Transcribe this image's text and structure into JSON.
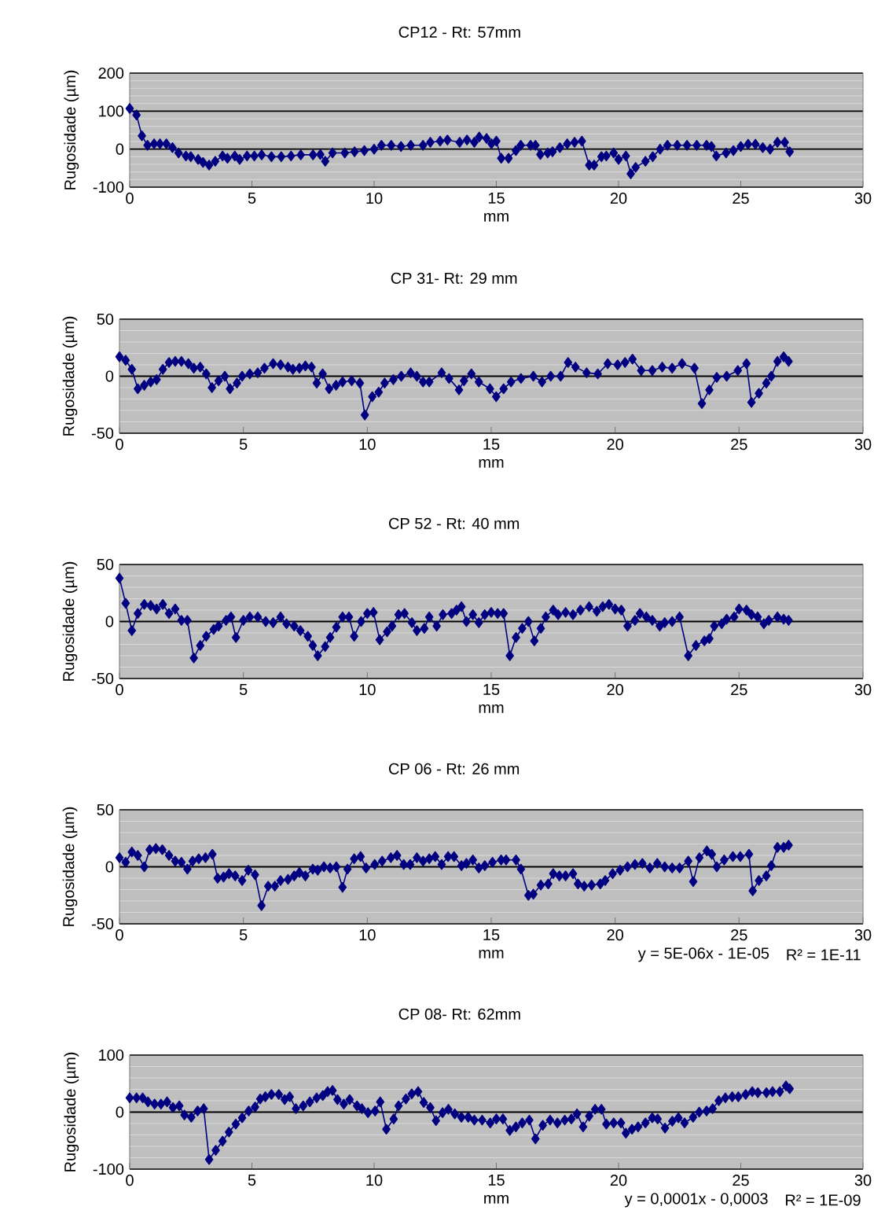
{
  "chart_data": [
    {
      "type": "line",
      "title": "CP12  - Rt: 57mm",
      "xlabel": "mm",
      "ylabel": "Rugosidade (µm)",
      "xlim": [
        0,
        30
      ],
      "xticks": [
        0,
        5,
        10,
        15,
        20,
        25,
        30
      ],
      "ylim": [
        -100,
        200
      ],
      "yticks": [
        -100,
        0,
        100,
        200
      ],
      "grid": "y",
      "marker": "diamond",
      "line_style": "solid",
      "series": [
        {
          "color": "#000080",
          "x": [
            0,
            0.28,
            0.5,
            0.73,
            1,
            1.24,
            1.5,
            1.75,
            2,
            2.3,
            2.5,
            2.8,
            3,
            3.25,
            3.5,
            3.8,
            4,
            4.3,
            4.5,
            4.8,
            5.1,
            5.4,
            5.8,
            6.2,
            6.6,
            7,
            7.5,
            7.8,
            8,
            8.3,
            8.8,
            9.2,
            9.6,
            10,
            10.3,
            10.7,
            11.1,
            11.5,
            12,
            12.3,
            12.7,
            13,
            13.5,
            13.8,
            14.1,
            14.3,
            14.6,
            14.8,
            15,
            15.2,
            15.5,
            15.8,
            16,
            16.4,
            16.6,
            16.8,
            17.1,
            17.3,
            17.6,
            17.9,
            18.2,
            18.5,
            18.8,
            19,
            19.3,
            19.5,
            19.8,
            20,
            20.3,
            20.5,
            20.7,
            21.1,
            21.4,
            21.7,
            22,
            22.4,
            22.8,
            23.2,
            23.6,
            23.8,
            24,
            24.4,
            24.7,
            25,
            25.3,
            25.6,
            25.9,
            26.2,
            26.5,
            26.8,
            27
          ],
          "values": [
            107,
            90,
            35,
            10,
            14,
            14,
            14,
            4,
            -10,
            -18,
            -20,
            -27,
            -35,
            -42,
            -32,
            -18,
            -24,
            -18,
            -27,
            -18,
            -18,
            -15,
            -20,
            -20,
            -18,
            -15,
            -15,
            -14,
            -32,
            -10,
            -10,
            -7,
            -4,
            0,
            10,
            10,
            7,
            10,
            10,
            18,
            21,
            24,
            18,
            24,
            18,
            32,
            28,
            14,
            21,
            -24,
            -24,
            -4,
            10,
            10,
            10,
            -14,
            -10,
            -7,
            4,
            14,
            18,
            21,
            -42,
            -42,
            -20,
            -18,
            -10,
            -27,
            -18,
            -65,
            -48,
            -32,
            -20,
            0,
            10,
            10,
            10,
            10,
            10,
            7,
            -18,
            -10,
            -4,
            7,
            13,
            13,
            4,
            0,
            18,
            18,
            -7
          ]
        }
      ]
    },
    {
      "type": "line",
      "title": "CP 31- Rt: 29 mm",
      "xlabel": "mm",
      "ylabel": "Rugosidade (µm)",
      "xlim": [
        0,
        30
      ],
      "xticks": [
        0,
        5,
        10,
        15,
        20,
        25,
        30
      ],
      "ylim": [
        -50,
        50
      ],
      "yticks": [
        -50,
        0,
        50
      ],
      "grid": "y",
      "marker": "diamond",
      "line_style": "solid",
      "series": [
        {
          "color": "#000080",
          "x": [
            0,
            0.25,
            0.5,
            0.74,
            1,
            1.26,
            1.5,
            1.75,
            2,
            2.25,
            2.5,
            2.78,
            3,
            3.26,
            3.5,
            3.73,
            4,
            4.25,
            4.46,
            4.74,
            4.95,
            5.26,
            5.58,
            5.85,
            6.2,
            6.5,
            6.8,
            7,
            7.26,
            7.5,
            7.75,
            7.96,
            8.2,
            8.46,
            8.74,
            9,
            9.37,
            9.7,
            9.9,
            10.2,
            10.46,
            10.7,
            11.05,
            11.37,
            11.75,
            12,
            12.25,
            12.5,
            13,
            13.3,
            13.7,
            13.9,
            14.2,
            14.5,
            14.95,
            15.2,
            15.5,
            15.8,
            16.2,
            16.7,
            17.05,
            17.4,
            17.8,
            18.1,
            18.4,
            18.85,
            19.3,
            19.7,
            20.1,
            20.4,
            20.7,
            21.05,
            21.5,
            21.9,
            22.3,
            22.7,
            23.2,
            23.5,
            23.8,
            24.1,
            24.5,
            24.95,
            25.3,
            25.5,
            25.8,
            26.1,
            26.3,
            26.55,
            26.8,
            27
          ],
          "values": [
            17,
            14,
            6,
            -11,
            -8,
            -5,
            -3,
            6,
            12,
            13,
            13,
            11,
            7,
            8,
            2,
            -10,
            -4,
            0,
            -11,
            -6,
            0,
            2,
            3,
            7,
            11,
            10,
            8,
            6,
            7,
            9,
            8,
            -6,
            2,
            -11,
            -8,
            -5,
            -4,
            -6,
            -34,
            -18,
            -14,
            -6,
            -3,
            0,
            3,
            0,
            -5,
            -5,
            3,
            -2,
            -12,
            -4,
            2,
            -5,
            -11,
            -18,
            -11,
            -5,
            -2,
            0,
            -5,
            0,
            0,
            12,
            8,
            3,
            2,
            11,
            10,
            12,
            15,
            5,
            5,
            8,
            7,
            11,
            7,
            -24,
            -12,
            -1,
            0,
            5,
            11,
            -23,
            -15,
            -6,
            0,
            13,
            17,
            13
          ]
        }
      ]
    },
    {
      "type": "line",
      "title": "CP 52 - Rt: 40 mm",
      "xlabel": "mm",
      "ylabel": "Rugosidade (µm)",
      "xlim": [
        0,
        30
      ],
      "xticks": [
        0,
        5,
        10,
        15,
        20,
        25,
        30
      ],
      "ylim": [
        -50,
        50
      ],
      "yticks": [
        -50,
        0,
        50
      ],
      "grid": "y",
      "marker": "diamond",
      "line_style": "solid",
      "series": [
        {
          "color": "#000080",
          "x": [
            0,
            0.25,
            0.5,
            0.74,
            1,
            1.26,
            1.5,
            1.75,
            2,
            2.25,
            2.5,
            2.74,
            3,
            3.26,
            3.5,
            3.8,
            4,
            4.3,
            4.5,
            4.7,
            5,
            5.26,
            5.58,
            5.9,
            6.2,
            6.5,
            6.74,
            7.05,
            7.3,
            7.6,
            7.8,
            8,
            8.3,
            8.5,
            8.75,
            9,
            9.26,
            9.47,
            9.75,
            10,
            10.25,
            10.5,
            10.8,
            11,
            11.26,
            11.5,
            11.8,
            12,
            12.3,
            12.5,
            12.8,
            13.05,
            13.4,
            13.6,
            13.8,
            14,
            14.26,
            14.5,
            14.74,
            15,
            15.26,
            15.5,
            15.75,
            16,
            16.25,
            16.5,
            16.74,
            17,
            17.2,
            17.5,
            17.7,
            18,
            18.3,
            18.6,
            18.95,
            19.26,
            19.5,
            19.75,
            20,
            20.25,
            20.5,
            20.8,
            21,
            21.26,
            21.5,
            21.8,
            22,
            22.3,
            22.6,
            22.95,
            23.26,
            23.6,
            23.8,
            24,
            24.3,
            24.5,
            24.8,
            25,
            25.3,
            25.5,
            25.75,
            26,
            26.2,
            26.55,
            26.8,
            27
          ],
          "values": [
            38,
            16,
            -8,
            7,
            15,
            14,
            11,
            15,
            7,
            11,
            1,
            1,
            -32,
            -21,
            -13,
            -7,
            -4,
            1,
            4,
            -14,
            1,
            4,
            4,
            0,
            -1,
            4,
            -2,
            -4,
            -8,
            -13,
            -21,
            -30,
            -22,
            -14,
            -5,
            4,
            4,
            -13,
            0,
            7,
            8,
            -16,
            -9,
            -4,
            6,
            7,
            -1,
            -8,
            -6,
            4,
            -4,
            6,
            7,
            10,
            13,
            0,
            6,
            -1,
            6,
            8,
            7,
            7,
            -30,
            -14,
            -6,
            0,
            -17,
            -6,
            4,
            10,
            6,
            8,
            6,
            10,
            13,
            9,
            13,
            15,
            11,
            10,
            -4,
            1,
            7,
            4,
            1,
            -4,
            -1,
            0,
            4,
            -30,
            -21,
            -17,
            -15,
            -4,
            -2,
            2,
            4,
            11,
            10,
            6,
            4,
            -2,
            1,
            4,
            2,
            1
          ]
        }
      ]
    },
    {
      "type": "line",
      "title": "CP 06 - Rt: 26 mm",
      "xlabel": "mm",
      "ylabel": "Rugosidade (µm)",
      "xlim": [
        0,
        30
      ],
      "xticks": [
        0,
        5,
        10,
        15,
        20,
        25,
        30
      ],
      "ylim": [
        -50,
        50
      ],
      "yticks": [
        -50,
        0,
        50
      ],
      "grid": "y",
      "marker": "diamond",
      "line_style": "solid",
      "annotations": [
        "y = 5E-06x - 1E-05",
        "R² = 1E-11"
      ],
      "series": [
        {
          "color": "#000080",
          "x": [
            0,
            0.25,
            0.5,
            0.74,
            1,
            1.22,
            1.47,
            1.73,
            2,
            2.25,
            2.5,
            2.74,
            2.95,
            3.2,
            3.47,
            3.75,
            3.96,
            4.2,
            4.42,
            4.67,
            4.95,
            5.2,
            5.47,
            5.73,
            6,
            6.27,
            6.5,
            6.8,
            7.05,
            7.26,
            7.5,
            7.8,
            8,
            8.25,
            8.5,
            8.75,
            9,
            9.2,
            9.47,
            9.73,
            9.95,
            10.3,
            10.6,
            10.95,
            11.2,
            11.47,
            11.73,
            12,
            12.25,
            12.5,
            12.74,
            13,
            13.26,
            13.5,
            13.8,
            14,
            14.26,
            14.5,
            14.74,
            15.05,
            15.4,
            15.6,
            16,
            16.2,
            16.5,
            16.7,
            17,
            17.3,
            17.5,
            17.75,
            18,
            18.3,
            18.5,
            18.75,
            19.05,
            19.4,
            19.6,
            19.9,
            20.2,
            20.5,
            20.8,
            21.1,
            21.4,
            21.7,
            22,
            22.3,
            22.6,
            22.95,
            23.15,
            23.4,
            23.7,
            23.9,
            24.1,
            24.4,
            24.75,
            25.05,
            25.4,
            25.55,
            25.8,
            26.1,
            26.3,
            26.55,
            26.8,
            27
          ],
          "values": [
            8,
            4,
            13,
            10,
            0,
            15,
            16,
            15,
            10,
            5,
            4,
            -2,
            5,
            7,
            8,
            11,
            -10,
            -9,
            -6,
            -8,
            -12,
            -3,
            -7,
            -34,
            -17,
            -17,
            -12,
            -11,
            -8,
            -5,
            -8,
            -2,
            -3,
            0,
            -1,
            0,
            -18,
            -2,
            7,
            9,
            -1,
            2,
            5,
            8,
            10,
            2,
            2,
            8,
            5,
            7,
            9,
            2,
            9,
            9,
            1,
            3,
            6,
            -1,
            1,
            4,
            6,
            6,
            6,
            -2,
            -25,
            -24,
            -16,
            -15,
            -6,
            -8,
            -8,
            -6,
            -15,
            -17,
            -16,
            -15,
            -12,
            -6,
            -3,
            0,
            2,
            3,
            -1,
            3,
            0,
            -1,
            -1,
            5,
            -13,
            8,
            14,
            11,
            0,
            6,
            9,
            9,
            11,
            -21,
            -12,
            -8,
            1,
            17,
            17,
            19
          ]
        }
      ]
    },
    {
      "type": "line",
      "title": "CP 08- Rt: 62mm",
      "xlabel": "mm",
      "ylabel": "Rugosidade (µm)",
      "xlim": [
        0,
        30
      ],
      "xticks": [
        0,
        5,
        10,
        15,
        20,
        25,
        30
      ],
      "ylim": [
        -100,
        100
      ],
      "yticks": [
        -100,
        0,
        100
      ],
      "grid": "y",
      "marker": "diamond",
      "line_style": "solid",
      "annotations": [
        "y = 0,0001x - 0,0003",
        "R² = 1E-09"
      ],
      "series": [
        {
          "color": "#000080",
          "x": [
            0,
            0.28,
            0.53,
            0.75,
            1.02,
            1.28,
            1.53,
            1.77,
            2.03,
            2.24,
            2.52,
            2.78,
            3.03,
            3.25,
            3.52,
            3.8,
            4.06,
            4.34,
            4.6,
            4.87,
            5.13,
            5.34,
            5.55,
            5.8,
            6.1,
            6.34,
            6.55,
            6.8,
            7.1,
            7.37,
            7.65,
            7.9,
            8.1,
            8.3,
            8.5,
            8.76,
            9,
            9.3,
            9.5,
            9.75,
            10.04,
            10.25,
            10.5,
            10.8,
            11,
            11.3,
            11.54,
            11.8,
            12.03,
            12.3,
            12.53,
            12.8,
            13.04,
            13.3,
            13.57,
            13.85,
            14.1,
            14.42,
            14.75,
            15,
            15.27,
            15.55,
            15.8,
            16.06,
            16.35,
            16.6,
            16.9,
            17.2,
            17.5,
            17.8,
            18.07,
            18.3,
            18.55,
            18.8,
            19.04,
            19.3,
            19.5,
            19.8,
            20.1,
            20.3,
            20.55,
            20.8,
            21.1,
            21.38,
            21.6,
            21.9,
            22.2,
            22.45,
            22.7,
            23.05,
            23.3,
            23.6,
            23.85,
            24.1,
            24.37,
            24.65,
            24.9,
            25.2,
            25.47,
            25.7,
            26.05,
            26.3,
            26.6,
            26.85,
            27
          ],
          "values": [
            25,
            25,
            25,
            18,
            14,
            14,
            18,
            8,
            11,
            -5,
            -9,
            2,
            6,
            -83,
            -67,
            -51,
            -35,
            -21,
            -10,
            2,
            9,
            23,
            27,
            31,
            31,
            22,
            27,
            6,
            11,
            18,
            25,
            29,
            36,
            38,
            22,
            14,
            22,
            11,
            6,
            -1,
            2,
            18,
            -30,
            -12,
            11,
            23,
            32,
            36,
            17,
            8,
            -15,
            -1,
            5,
            -3,
            -9,
            -9,
            -14,
            -14,
            -19,
            -12,
            -12,
            -32,
            -26,
            -19,
            -14,
            -47,
            -23,
            -14,
            -19,
            -14,
            -12,
            -3,
            -26,
            -7,
            5,
            5,
            -21,
            -19,
            -19,
            -37,
            -30,
            -26,
            -19,
            -10,
            -12,
            -28,
            -16,
            -10,
            -19,
            -9,
            0,
            2,
            6,
            20,
            25,
            27,
            27,
            31,
            36,
            34,
            34,
            36,
            36,
            46,
            41
          ]
        }
      ]
    }
  ]
}
